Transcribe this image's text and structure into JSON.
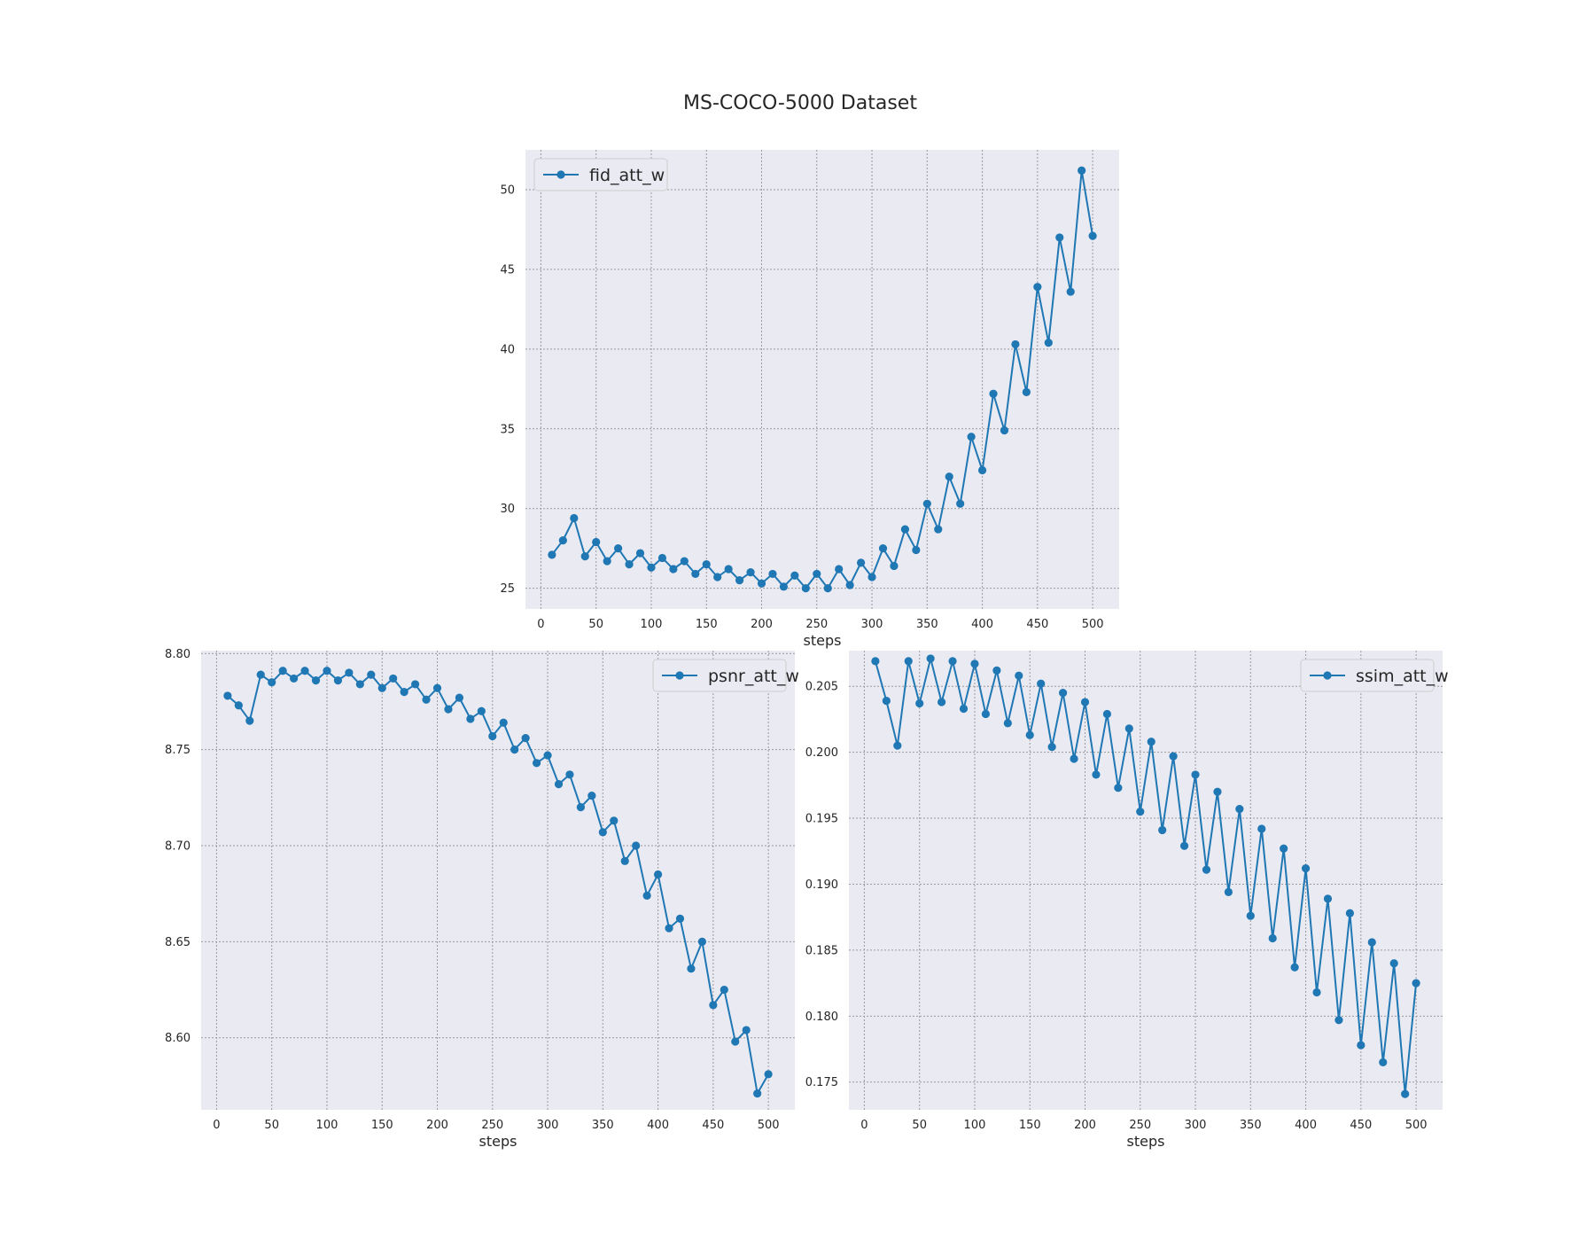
{
  "figure": {
    "title": "MS-COCO-5000 Dataset"
  },
  "colors": {
    "series": "#1f77b4",
    "axes_bg": "#eaeaf2",
    "grid": "#9a9a9a"
  },
  "chart_data": [
    {
      "type": "line",
      "xlabel": "steps",
      "ylabel": "",
      "legend": "top-left",
      "grid": true,
      "xlim": [
        -14,
        524
      ],
      "ylim": [
        23.7,
        52.5
      ],
      "xticks": [
        0,
        50,
        100,
        150,
        200,
        250,
        300,
        350,
        400,
        450,
        500
      ],
      "yticks": [
        25,
        30,
        35,
        40,
        45,
        50
      ],
      "ytick_labels": [
        "25",
        "30",
        "35",
        "40",
        "45",
        "50"
      ],
      "series": [
        {
          "name": "fid_att_w",
          "x": [
            10,
            20,
            30,
            40,
            50,
            60,
            70,
            80,
            90,
            100,
            110,
            120,
            130,
            140,
            150,
            160,
            170,
            180,
            190,
            200,
            210,
            220,
            230,
            240,
            250,
            260,
            270,
            280,
            290,
            300,
            310,
            320,
            330,
            340,
            350,
            360,
            370,
            380,
            390,
            400,
            410,
            420,
            430,
            440,
            450,
            460,
            470,
            480,
            490,
            500
          ],
          "y": [
            27.1,
            28.0,
            29.4,
            27.0,
            27.9,
            26.7,
            27.5,
            26.5,
            27.2,
            26.3,
            26.9,
            26.2,
            26.7,
            25.9,
            26.5,
            25.7,
            26.2,
            25.5,
            26.0,
            25.3,
            25.9,
            25.1,
            25.8,
            25.0,
            25.9,
            25.0,
            26.2,
            25.2,
            26.6,
            25.7,
            27.5,
            26.4,
            28.7,
            27.4,
            30.3,
            28.7,
            32.0,
            30.3,
            34.5,
            32.4,
            37.2,
            34.9,
            40.3,
            37.3,
            43.9,
            40.4,
            47.0,
            43.6,
            51.2,
            47.1
          ]
        }
      ]
    },
    {
      "type": "line",
      "xlabel": "steps",
      "ylabel": "",
      "legend": "top-right",
      "grid": true,
      "xlim": [
        -14,
        524
      ],
      "ylim": [
        8.5625,
        8.8015
      ],
      "xticks": [
        0,
        50,
        100,
        150,
        200,
        250,
        300,
        350,
        400,
        450,
        500
      ],
      "yticks": [
        8.6,
        8.65,
        8.7,
        8.75,
        8.8
      ],
      "ytick_labels": [
        "8.60",
        "8.65",
        "8.70",
        "8.75",
        "8.80"
      ],
      "series": [
        {
          "name": "psnr_att_w",
          "x": [
            10,
            20,
            30,
            40,
            50,
            60,
            70,
            80,
            90,
            100,
            110,
            120,
            130,
            140,
            150,
            160,
            170,
            180,
            190,
            200,
            210,
            220,
            230,
            240,
            250,
            260,
            270,
            280,
            290,
            300,
            310,
            320,
            330,
            340,
            350,
            360,
            370,
            380,
            390,
            400,
            410,
            420,
            430,
            440,
            450,
            460,
            470,
            480,
            490,
            500
          ],
          "y": [
            8.778,
            8.773,
            8.765,
            8.789,
            8.785,
            8.791,
            8.787,
            8.791,
            8.786,
            8.791,
            8.786,
            8.79,
            8.784,
            8.789,
            8.782,
            8.787,
            8.78,
            8.784,
            8.776,
            8.782,
            8.771,
            8.777,
            8.766,
            8.77,
            8.757,
            8.764,
            8.75,
            8.756,
            8.743,
            8.747,
            8.732,
            8.737,
            8.72,
            8.726,
            8.707,
            8.713,
            8.692,
            8.7,
            8.674,
            8.685,
            8.657,
            8.662,
            8.636,
            8.65,
            8.617,
            8.625,
            8.598,
            8.604,
            8.571,
            8.581
          ]
        }
      ]
    },
    {
      "type": "line",
      "xlabel": "steps",
      "ylabel": "",
      "legend": "top-right",
      "grid": true,
      "xlim": [
        -14,
        524
      ],
      "ylim": [
        0.1729,
        0.2077
      ],
      "xticks": [
        0,
        50,
        100,
        150,
        200,
        250,
        300,
        350,
        400,
        450,
        500
      ],
      "yticks": [
        0.175,
        0.18,
        0.185,
        0.19,
        0.195,
        0.2,
        0.205
      ],
      "ytick_labels": [
        "0.175",
        "0.180",
        "0.185",
        "0.190",
        "0.195",
        "0.200",
        "0.205"
      ],
      "series": [
        {
          "name": "ssim_att_w",
          "x": [
            10,
            20,
            30,
            40,
            50,
            60,
            70,
            80,
            90,
            100,
            110,
            120,
            130,
            140,
            150,
            160,
            170,
            180,
            190,
            200,
            210,
            220,
            230,
            240,
            250,
            260,
            270,
            280,
            290,
            300,
            310,
            320,
            330,
            340,
            350,
            360,
            370,
            380,
            390,
            400,
            410,
            420,
            430,
            440,
            450,
            460,
            470,
            480,
            490,
            500
          ],
          "y": [
            0.2069,
            0.2039,
            0.2005,
            0.2069,
            0.2037,
            0.2071,
            0.2038,
            0.2069,
            0.2033,
            0.2067,
            0.2029,
            0.2062,
            0.2022,
            0.2058,
            0.2013,
            0.2052,
            0.2004,
            0.2045,
            0.1995,
            0.2038,
            0.1983,
            0.2029,
            0.1973,
            0.2018,
            0.1955,
            0.2008,
            0.1941,
            0.1997,
            0.1929,
            0.1983,
            0.1911,
            0.197,
            0.1894,
            0.1957,
            0.1876,
            0.1942,
            0.1859,
            0.1927,
            0.1837,
            0.1912,
            0.1818,
            0.1889,
            0.1797,
            0.1878,
            0.1778,
            0.1856,
            0.1765,
            0.184,
            0.1741,
            0.1825
          ]
        }
      ]
    }
  ]
}
